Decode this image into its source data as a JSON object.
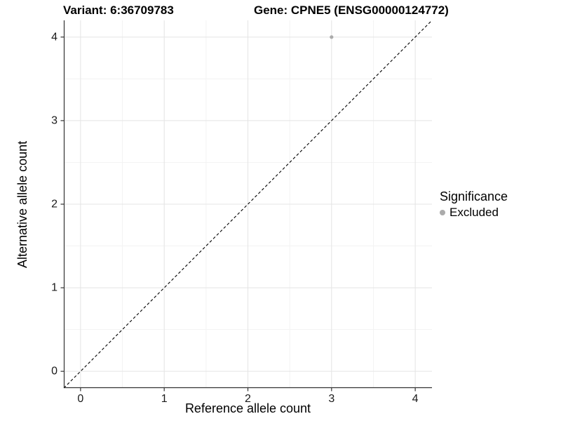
{
  "titles": {
    "variant": "Variant: 6:36709783",
    "gene": "Gene: CPNE5 (ENSG00000124772)"
  },
  "legend": {
    "title": "Significance",
    "items": [
      {
        "label": "Excluded",
        "color": "#ABABAB"
      }
    ]
  },
  "chart_data": {
    "type": "scatter",
    "title_left": "Variant: 6:36709783",
    "title_right": "Gene: CPNE5 (ENSG00000124772)",
    "xlabel": "Reference allele count",
    "ylabel": "Alternative allele count",
    "xlim": [
      -0.2,
      4.2
    ],
    "ylim": [
      -0.2,
      4.2
    ],
    "x_ticks": [
      0,
      1,
      2,
      3,
      4
    ],
    "y_ticks": [
      0,
      1,
      2,
      3,
      4
    ],
    "x_minor_ticks": [
      0.5,
      1.5,
      2.5,
      3.5
    ],
    "y_minor_ticks": [
      0.5,
      1.5,
      2.5,
      3.5
    ],
    "grid": true,
    "legend_position": "right",
    "series": [
      {
        "name": "Excluded",
        "color": "#ABABAB",
        "points": [
          [
            3,
            4
          ]
        ],
        "point_radius": 2.6
      }
    ],
    "reference_line": {
      "type": "identity",
      "style": "dashed",
      "color": "#000000"
    },
    "colors": {
      "major_grid": "#E4E4E4",
      "minor_grid": "#F3F3F3",
      "axis_line": "#333333",
      "tick_mark": "#333333",
      "tick_label": "#1A1A1A",
      "panel_background": "#FFFFFF"
    }
  }
}
